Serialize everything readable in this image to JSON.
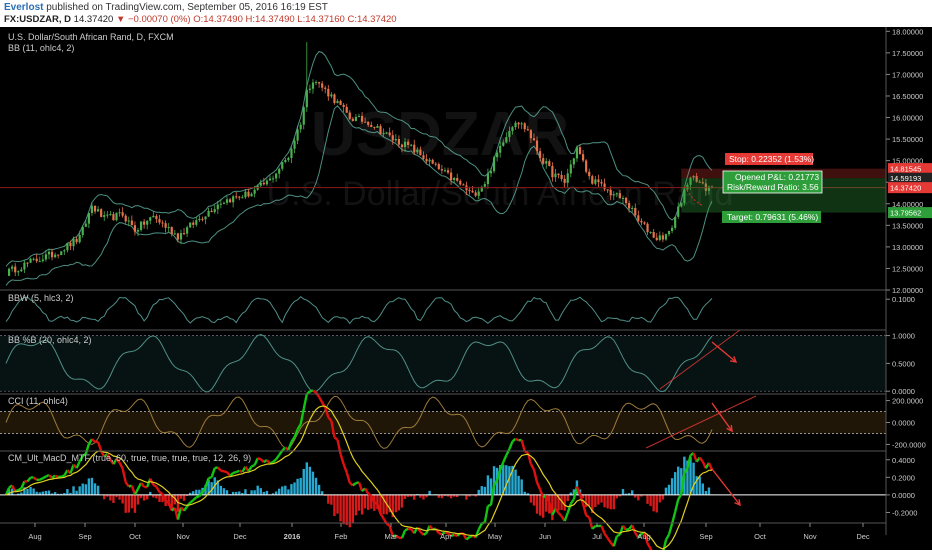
{
  "header": {
    "user": "Everlost",
    "published": "published on TradingView.com, September 05, 2016 16:19 EST",
    "symbol": "FX:USDZAR, D",
    "last": "14.37420",
    "change": "−0.00070 (0%)",
    "open": "O:14.37490",
    "high": "H:14.37490",
    "low": "L:14.37160",
    "close": "C:14.37420"
  },
  "colors": {
    "background": "#000000",
    "candle_up": "#4caf50",
    "candle_down": "#e6734b",
    "bands": "#5fb3a3",
    "price_line": "#8b1a1a",
    "stop": "#e53935",
    "target": "#2e9e3a",
    "osc": "#4f8f88",
    "cci": "#9c7b3a",
    "macd_up": "#13c413",
    "macd_down": "#e01010",
    "signal": "#e0d020",
    "hist_pos": "#27a9d1",
    "hist_neg": "#d71a1a",
    "arrow": "#e53935"
  },
  "main": {
    "title": "U.S. Dollar/South African Rand, D, FXCM",
    "indicator": "BB (11, ohlc4, 2)",
    "watermark_sym": "USDZAR",
    "watermark_name": "U.S. Dollar/South African Rand",
    "position": {
      "stop_label": "Stop: 0.22352 (1.53%)",
      "pnl_label": "Opened P&L: 0.21773",
      "rr_label": "Risk/Reward Ratio: 3.56",
      "target_label": "Target: 0.79631 (5.46%)"
    },
    "price_badges": [
      "14.81545",
      "14.59193",
      "14.37420",
      "13.79562"
    ]
  },
  "panes": {
    "bbw": "BBW (5, hlc3, 2)",
    "bbp": "BB %B (20, ohlc4, 2)",
    "cci": "CCI (11, ohlc4)",
    "macd": "CM_Ult_MacD_MTF (true, 60, true, true, true, true, 12, 26, 9)"
  },
  "chart_data": [
    {
      "type": "candlestick",
      "title": "U.S. Dollar/South African Rand, D, FXCM",
      "x": [
        "Aug",
        "Sep",
        "Oct",
        "Nov",
        "Dec",
        "2016",
        "Feb",
        "Mar",
        "Apr",
        "May",
        "Jun",
        "Jul",
        "Aug",
        "Sep",
        "Oct",
        "Nov",
        "Dec"
      ],
      "ylim": [
        12.0,
        18.1
      ],
      "ytick_labels": [
        "18.00000",
        "17.50000",
        "17.00000",
        "16.50000",
        "16.00000",
        "15.50000",
        "15.00000",
        "14.50000",
        "14.00000",
        "13.50000",
        "13.00000",
        "12.50000",
        "12.00000"
      ],
      "yticks": [
        18.0,
        17.5,
        17.0,
        16.5,
        16.0,
        15.5,
        15.0,
        14.5,
        14.0,
        13.5,
        13.0,
        12.5,
        12.0
      ],
      "close_path": [
        [
          0,
          12.4
        ],
        [
          8,
          12.65
        ],
        [
          16,
          12.85
        ],
        [
          24,
          13.2
        ],
        [
          28,
          13.95
        ],
        [
          32,
          13.65
        ],
        [
          38,
          13.75
        ],
        [
          42,
          13.4
        ],
        [
          48,
          13.7
        ],
        [
          56,
          13.25
        ],
        [
          62,
          13.6
        ],
        [
          70,
          14.05
        ],
        [
          80,
          14.25
        ],
        [
          86,
          14.55
        ],
        [
          92,
          15.1
        ],
        [
          96,
          15.9
        ],
        [
          98,
          16.6
        ],
        [
          100,
          16.9
        ],
        [
          106,
          16.5
        ],
        [
          112,
          16.0
        ],
        [
          118,
          15.9
        ],
        [
          126,
          15.5
        ],
        [
          132,
          15.3
        ],
        [
          140,
          14.85
        ],
        [
          148,
          14.45
        ],
        [
          152,
          14.2
        ],
        [
          156,
          14.5
        ],
        [
          162,
          15.5
        ],
        [
          166,
          15.95
        ],
        [
          170,
          15.7
        ],
        [
          174,
          15.1
        ],
        [
          178,
          14.7
        ],
        [
          182,
          14.5
        ],
        [
          186,
          15.3
        ],
        [
          190,
          14.6
        ],
        [
          196,
          14.3
        ],
        [
          202,
          14.05
        ],
        [
          206,
          13.6
        ],
        [
          212,
          13.2
        ],
        [
          216,
          13.3
        ],
        [
          220,
          14.1
        ],
        [
          224,
          14.7
        ],
        [
          228,
          14.3
        ],
        [
          230,
          14.37
        ]
      ],
      "days_total": 230,
      "spike": {
        "day": 98,
        "high": 17.75
      },
      "last": 14.3742,
      "stop": 14.81545,
      "entry": 14.59193,
      "target": 13.79562,
      "price_line": 14.3742
    },
    {
      "type": "line",
      "name": "BBW (5, hlc3, 2)",
      "ylim": [
        0,
        0.13
      ],
      "ytick_labels": [
        "0.1000"
      ],
      "yticks": [
        0.1
      ]
    },
    {
      "type": "line",
      "name": "BB %B (20, ohlc4, 2)",
      "ylim": [
        -0.05,
        1.1
      ],
      "ytick_labels": [
        "1.0000",
        "0.5000",
        "0.0000"
      ],
      "yticks": [
        1.0,
        0.5,
        0.0
      ]
    },
    {
      "type": "line",
      "name": "CCI (11, ohlc4)",
      "ylim": [
        -260,
        260
      ],
      "ytick_labels": [
        "200.0000",
        "0.0000",
        "-200.0000"
      ],
      "yticks": [
        200,
        0,
        -200
      ]
    },
    {
      "type": "line",
      "name": "CM_Ult_MacD_MTF (true, 60, true, true, true, true, 12, 26, 9)",
      "ylim": [
        -0.32,
        0.5
      ],
      "ytick_labels": [
        "0.4000",
        "0.2000",
        "0.0000",
        "-0.2000"
      ],
      "yticks": [
        0.4,
        0.2,
        0.0,
        -0.2
      ]
    }
  ]
}
